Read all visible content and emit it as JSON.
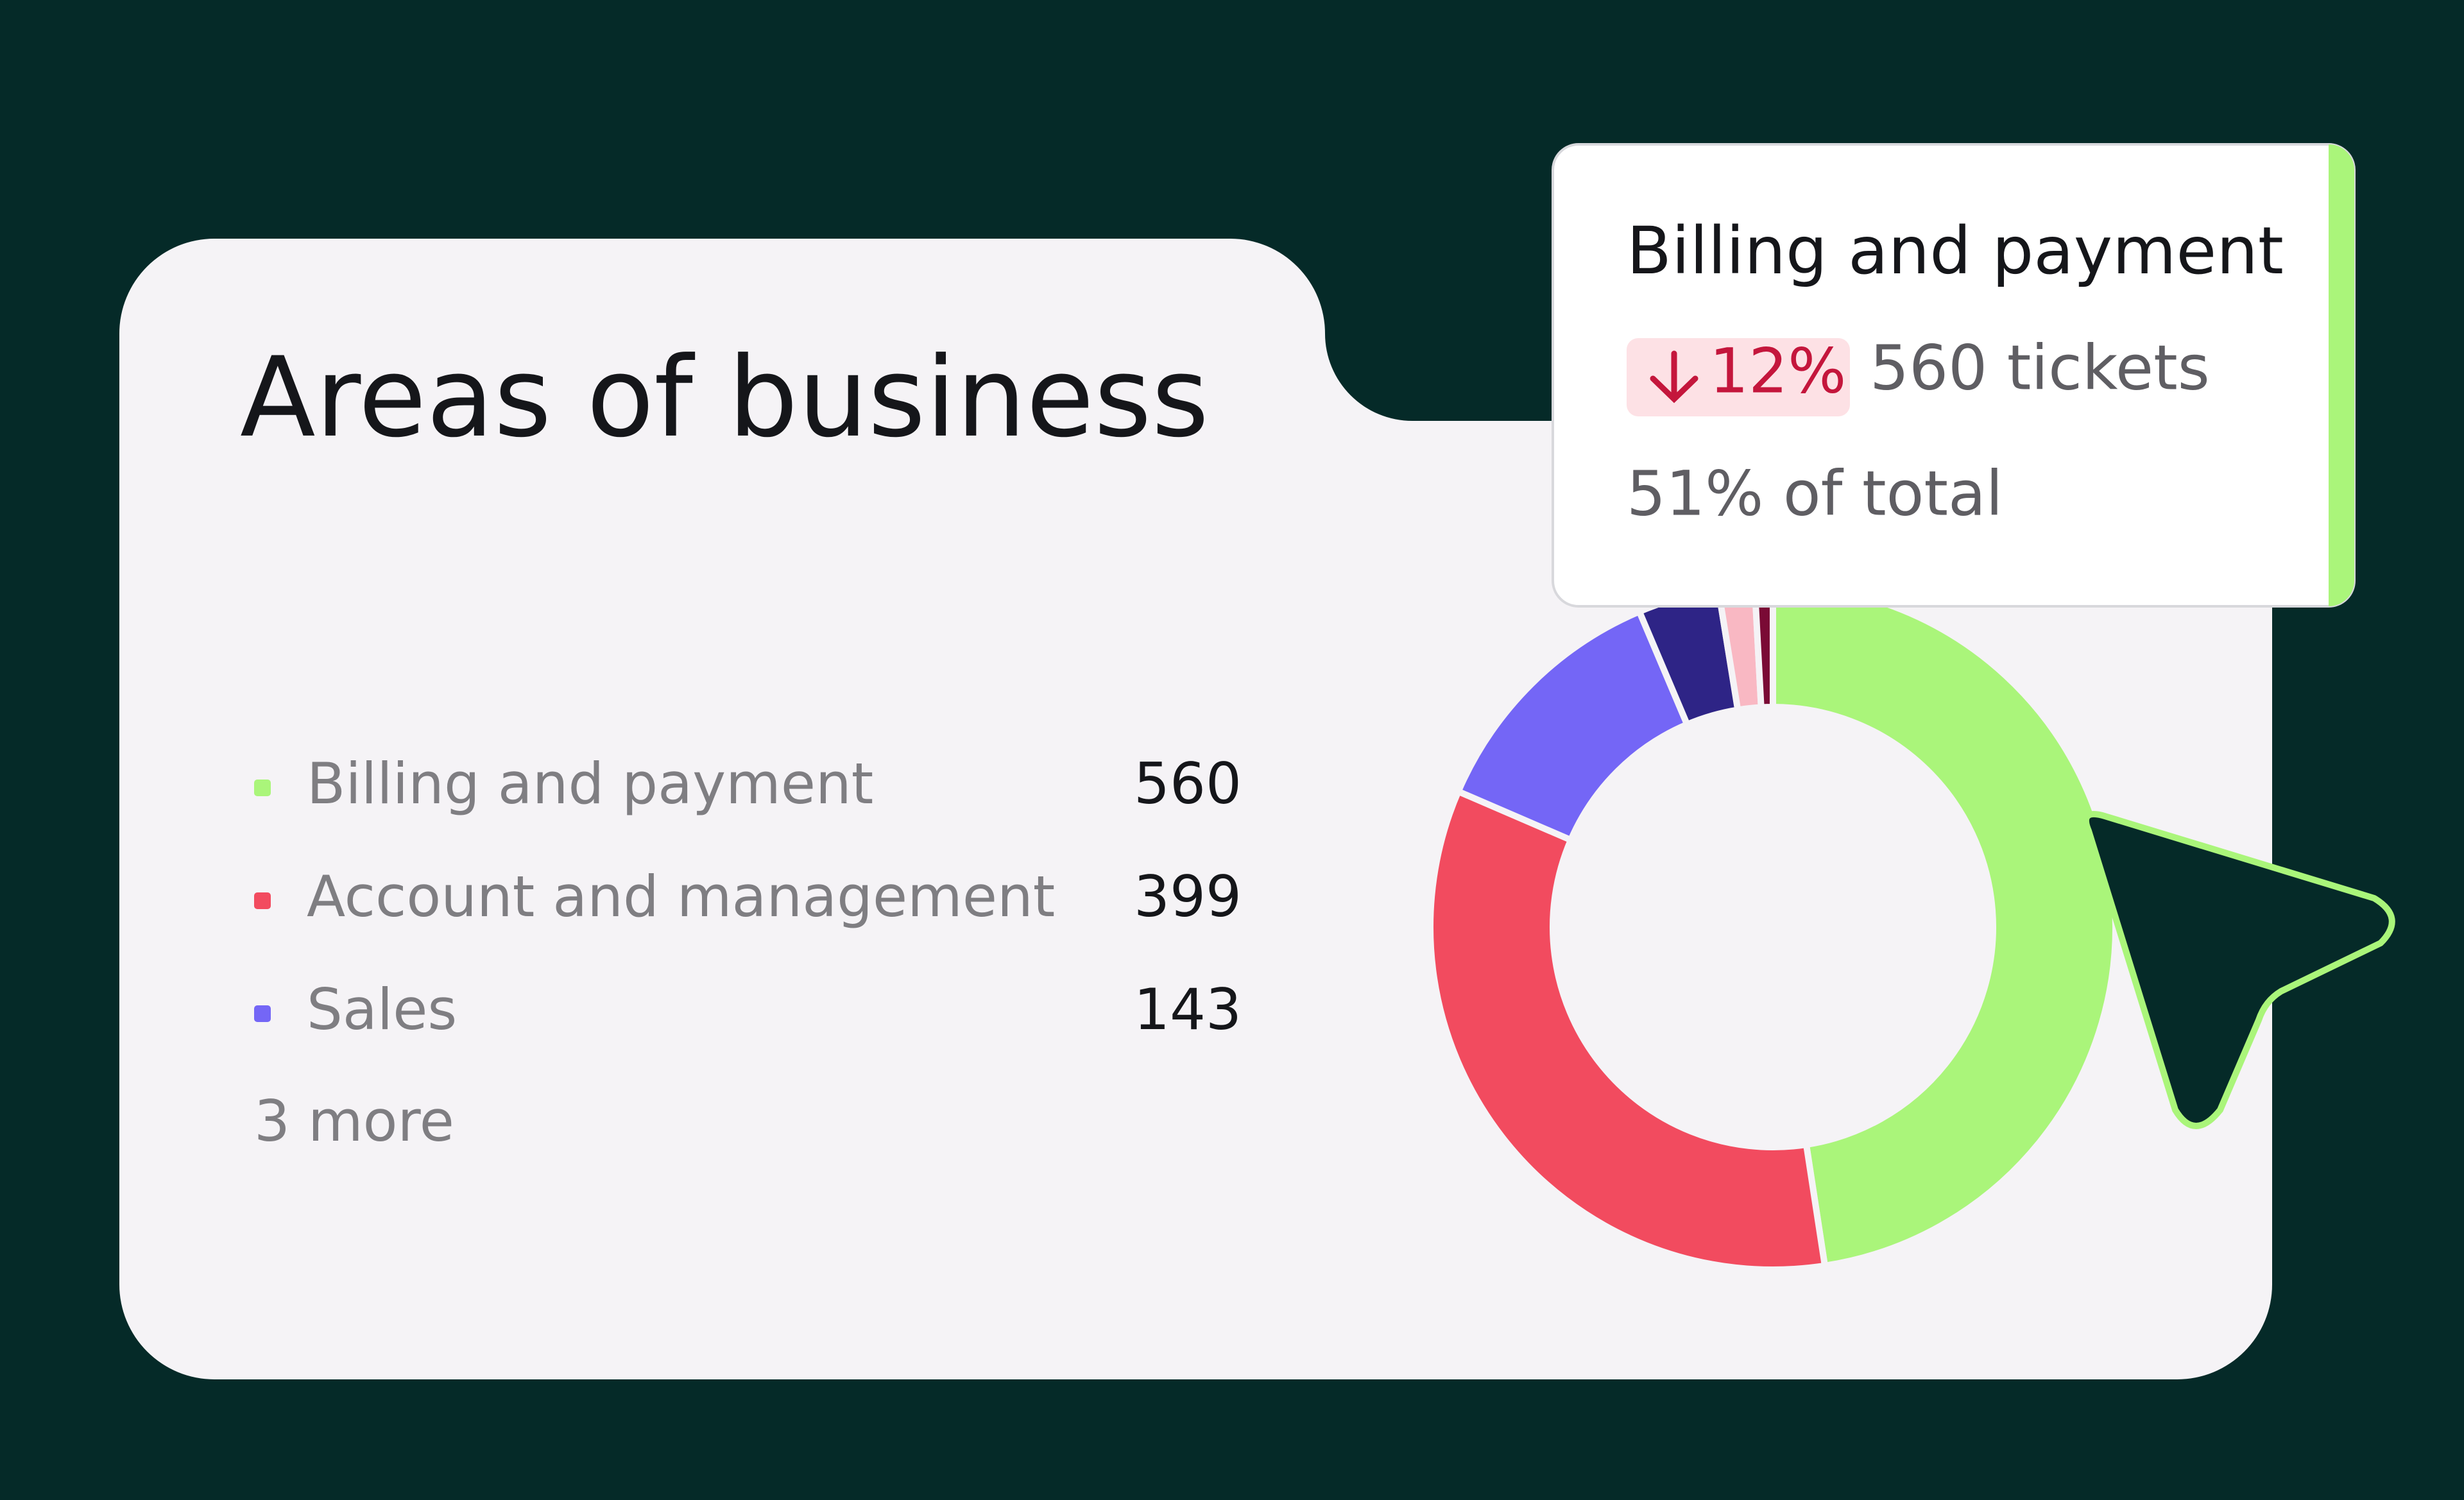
{
  "chart_data": {
    "type": "donut",
    "title": "Areas of business",
    "categories": [
      "Billing and payment",
      "Account and management",
      "Sales",
      null,
      null,
      null
    ],
    "values": [
      560,
      399,
      143,
      45,
      20,
      10
    ],
    "colors": [
      "#aaf57a",
      "#f24b5f",
      "#7466f6",
      "#2e2486",
      "#f9b8c3",
      "#7a0a35"
    ],
    "legend_count": 3,
    "more_label": "3 more",
    "tooltip": {
      "title": "Billing and payment",
      "change": "12%",
      "tickets": "560 tickets",
      "share": "51% of total"
    }
  }
}
